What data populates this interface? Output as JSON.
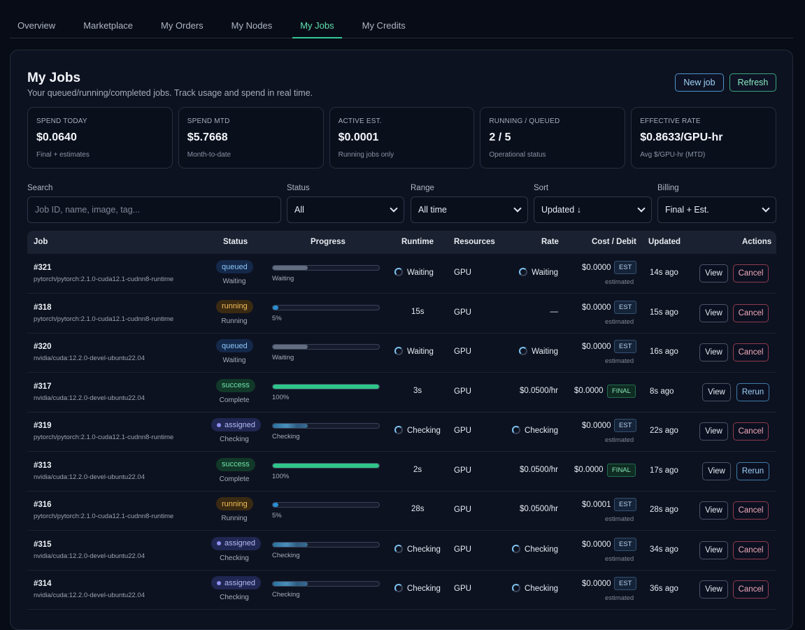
{
  "tabs": [
    "Overview",
    "Marketplace",
    "My Orders",
    "My Nodes",
    "My Jobs",
    "My Credits"
  ],
  "active_tab": "My Jobs",
  "header": {
    "title": "My Jobs",
    "subtitle": "Your queued/running/completed jobs. Track usage and spend in real time.",
    "new_job_label": "New job",
    "refresh_label": "Refresh"
  },
  "stats": [
    {
      "label": "SPEND TODAY",
      "value": "$0.0640",
      "note": "Final + estimates"
    },
    {
      "label": "SPEND MTD",
      "value": "$5.7668",
      "note": "Month-to-date"
    },
    {
      "label": "ACTIVE EST.",
      "value": "$0.0001",
      "note": "Running jobs only"
    },
    {
      "label": "RUNNING / QUEUED",
      "value": "2 / 5",
      "note": "Operational status"
    },
    {
      "label": "EFFECTIVE RATE",
      "value": "$0.8633/GPU-hr",
      "note": "Avg $/GPU-hr (MTD)"
    }
  ],
  "filters": {
    "search": {
      "label": "Search",
      "placeholder": "Job ID, name, image, tag..."
    },
    "status": {
      "label": "Status",
      "value": "All"
    },
    "range": {
      "label": "Range",
      "value": "All time"
    },
    "sort": {
      "label": "Sort",
      "value": "Updated ↓"
    },
    "billing": {
      "label": "Billing",
      "value": "Final + Est."
    }
  },
  "columns": {
    "job": "Job",
    "status": "Status",
    "progress": "Progress",
    "runtime": "Runtime",
    "resources": "Resources",
    "rate": "Rate",
    "cost": "Cost / Debit",
    "updated": "Updated",
    "actions": "Actions"
  },
  "rows": [
    {
      "id": "#321",
      "image": "pytorch/pytorch:2.1.0-cuda12.1-cudnn8-runtime",
      "status": "queued",
      "substatus": "Waiting",
      "progress_text": "Waiting",
      "progress": 0.33,
      "bar": "gray",
      "runtime": "Waiting",
      "runtime_spinner": true,
      "resources": "GPU",
      "rate": "Waiting",
      "rate_spinner": true,
      "cost": "$0.0000",
      "badge": "EST",
      "estimated": "estimated",
      "updated": "14s ago",
      "action": "Cancel"
    },
    {
      "id": "#318",
      "image": "pytorch/pytorch:2.1.0-cuda12.1-cudnn8-runtime",
      "status": "running",
      "substatus": "Running",
      "progress_text": "5%",
      "progress": 0.05,
      "bar": "blue",
      "runtime": "15s",
      "runtime_spinner": false,
      "resources": "GPU",
      "rate": "—",
      "rate_spinner": false,
      "cost": "$0.0000",
      "badge": "EST",
      "estimated": "estimated",
      "updated": "15s ago",
      "action": "Cancel"
    },
    {
      "id": "#320",
      "image": "nvidia/cuda:12.2.0-devel-ubuntu22.04",
      "status": "queued",
      "substatus": "Waiting",
      "progress_text": "Waiting",
      "progress": 0.33,
      "bar": "gray",
      "runtime": "Waiting",
      "runtime_spinner": true,
      "resources": "GPU",
      "rate": "Waiting",
      "rate_spinner": true,
      "cost": "$0.0000",
      "badge": "EST",
      "estimated": "estimated",
      "updated": "16s ago",
      "action": "Cancel"
    },
    {
      "id": "#317",
      "image": "nvidia/cuda:12.2.0-devel-ubuntu22.04",
      "status": "success",
      "substatus": "Complete",
      "progress_text": "100%",
      "progress": 1.0,
      "bar": "green",
      "runtime": "3s",
      "runtime_spinner": false,
      "resources": "GPU",
      "rate": "$0.0500/hr",
      "rate_spinner": false,
      "cost": "$0.0000",
      "badge": "FINAL",
      "estimated": "",
      "updated": "8s ago",
      "action": "Rerun"
    },
    {
      "id": "#319",
      "image": "pytorch/pytorch:2.1.0-cuda12.1-cudnn8-runtime",
      "status": "assigned",
      "substatus": "Checking",
      "progress_text": "Checking",
      "progress": 0.33,
      "bar": "stripe",
      "runtime": "Checking",
      "runtime_spinner": true,
      "resources": "GPU",
      "rate": "Checking",
      "rate_spinner": true,
      "cost": "$0.0000",
      "badge": "EST",
      "estimated": "estimated",
      "updated": "22s ago",
      "action": "Cancel"
    },
    {
      "id": "#313",
      "image": "nvidia/cuda:12.2.0-devel-ubuntu22.04",
      "status": "success",
      "substatus": "Complete",
      "progress_text": "100%",
      "progress": 1.0,
      "bar": "green",
      "runtime": "2s",
      "runtime_spinner": false,
      "resources": "GPU",
      "rate": "$0.0500/hr",
      "rate_spinner": false,
      "cost": "$0.0000",
      "badge": "FINAL",
      "estimated": "",
      "updated": "17s ago",
      "action": "Rerun"
    },
    {
      "id": "#316",
      "image": "pytorch/pytorch:2.1.0-cuda12.1-cudnn8-runtime",
      "status": "running",
      "substatus": "Running",
      "progress_text": "5%",
      "progress": 0.05,
      "bar": "blue",
      "runtime": "28s",
      "runtime_spinner": false,
      "resources": "GPU",
      "rate": "$0.0500/hr",
      "rate_spinner": false,
      "cost": "$0.0001",
      "badge": "EST",
      "estimated": "estimated",
      "updated": "28s ago",
      "action": "Cancel"
    },
    {
      "id": "#315",
      "image": "nvidia/cuda:12.2.0-devel-ubuntu22.04",
      "status": "assigned",
      "substatus": "Checking",
      "progress_text": "Checking",
      "progress": 0.33,
      "bar": "stripe",
      "runtime": "Checking",
      "runtime_spinner": true,
      "resources": "GPU",
      "rate": "Checking",
      "rate_spinner": true,
      "cost": "$0.0000",
      "badge": "EST",
      "estimated": "estimated",
      "updated": "34s ago",
      "action": "Cancel"
    },
    {
      "id": "#314",
      "image": "nvidia/cuda:12.2.0-devel-ubuntu22.04",
      "status": "assigned",
      "substatus": "Checking",
      "progress_text": "Checking",
      "progress": 0.33,
      "bar": "stripe",
      "runtime": "Checking",
      "runtime_spinner": true,
      "resources": "GPU",
      "rate": "Checking",
      "rate_spinner": true,
      "cost": "$0.0000",
      "badge": "EST",
      "estimated": "estimated",
      "updated": "36s ago",
      "action": "Cancel"
    }
  ],
  "view_label": "View"
}
